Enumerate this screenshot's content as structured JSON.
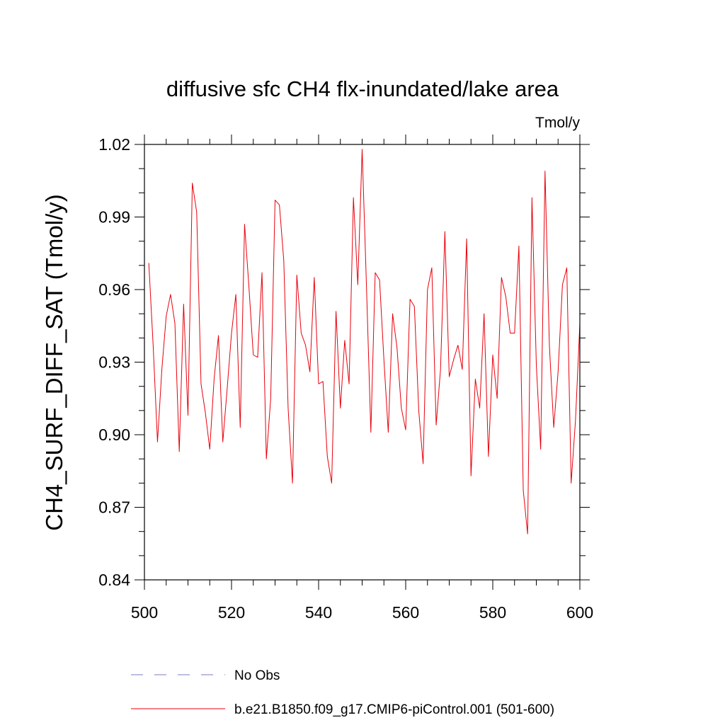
{
  "chart_data": {
    "type": "line",
    "title": "diffusive sfc CH4 flx-inundated/lake area",
    "units_label": "Tmol/y",
    "ylabel": "CH4_SURF_DIFF_SAT  (Tmol/y)",
    "xlabel": "",
    "xlim": [
      500,
      600
    ],
    "ylim": [
      0.84,
      1.02
    ],
    "xticks": [
      "500",
      "520",
      "540",
      "560",
      "580",
      "600"
    ],
    "yticks": [
      "0.84",
      "0.87",
      "0.90",
      "0.93",
      "0.96",
      "0.99",
      "1.02"
    ],
    "grid": false,
    "legend_position": "bottom-left",
    "series": [
      {
        "name": "b.e21.B1850.f09_g17.CMIP6-piControl.001 (501-600)",
        "color": "#e8000b",
        "style": "solid",
        "x": [
          501,
          502,
          503,
          504,
          505,
          506,
          507,
          508,
          509,
          510,
          511,
          512,
          513,
          514,
          515,
          516,
          517,
          518,
          519,
          520,
          521,
          522,
          523,
          524,
          525,
          526,
          527,
          528,
          529,
          530,
          531,
          532,
          533,
          534,
          535,
          536,
          537,
          538,
          539,
          540,
          541,
          542,
          543,
          544,
          545,
          546,
          547,
          548,
          549,
          550,
          551,
          552,
          553,
          554,
          555,
          556,
          557,
          558,
          559,
          560,
          561,
          562,
          563,
          564,
          565,
          566,
          567,
          568,
          569,
          570,
          571,
          572,
          573,
          574,
          575,
          576,
          577,
          578,
          579,
          580,
          581,
          582,
          583,
          584,
          585,
          586,
          587,
          588,
          589,
          590,
          591,
          592,
          593,
          594,
          595,
          596,
          597,
          598,
          599,
          600
        ],
        "y": [
          0.971,
          0.937,
          0.897,
          0.927,
          0.949,
          0.958,
          0.946,
          0.893,
          0.954,
          0.908,
          1.004,
          0.992,
          0.921,
          0.909,
          0.894,
          0.923,
          0.941,
          0.897,
          0.919,
          0.942,
          0.958,
          0.903,
          0.987,
          0.961,
          0.933,
          0.932,
          0.967,
          0.89,
          0.915,
          0.997,
          0.995,
          0.972,
          0.911,
          0.88,
          0.966,
          0.942,
          0.937,
          0.926,
          0.965,
          0.921,
          0.922,
          0.891,
          0.88,
          0.951,
          0.911,
          0.939,
          0.921,
          0.998,
          0.962,
          1.018,
          0.961,
          0.901,
          0.967,
          0.964,
          0.931,
          0.901,
          0.95,
          0.936,
          0.911,
          0.902,
          0.956,
          0.953,
          0.91,
          0.888,
          0.96,
          0.969,
          0.904,
          0.927,
          0.984,
          0.924,
          0.931,
          0.937,
          0.927,
          0.981,
          0.883,
          0.923,
          0.911,
          0.95,
          0.891,
          0.933,
          0.915,
          0.965,
          0.957,
          0.942,
          0.942,
          0.978,
          0.877,
          0.859,
          0.998,
          0.929,
          0.894,
          1.009,
          0.937,
          0.903,
          0.926,
          0.962,
          0.969,
          0.88,
          0.906,
          0.946
        ]
      }
    ],
    "legend": [
      {
        "label": "No Obs",
        "color": "#7b7bbd",
        "style": "dashed"
      },
      {
        "label": "b.e21.B1850.f09_g17.CMIP6-piControl.001 (501-600)",
        "color": "#e8000b",
        "style": "solid"
      }
    ]
  }
}
